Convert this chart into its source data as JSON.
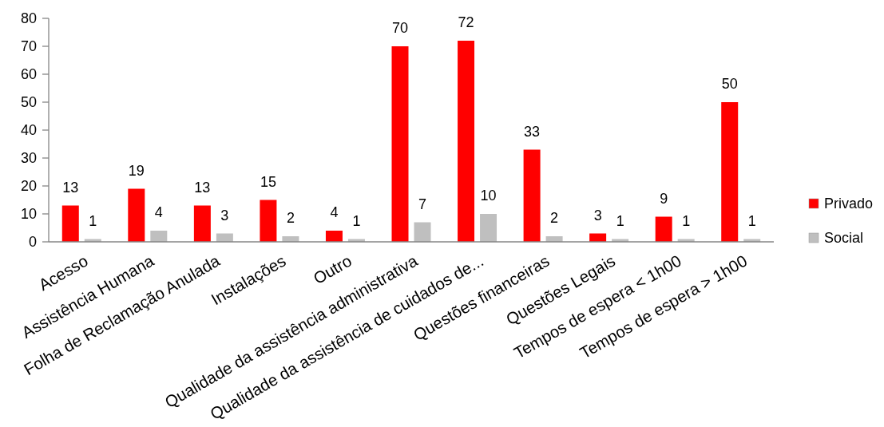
{
  "chart_data": {
    "type": "bar",
    "categories": [
      "Acesso",
      "Assistência Humana",
      "Folha de Reclamação Anulada",
      "Instalações",
      "Outro",
      "Qualidade da assistência administrativa",
      "Qualidade da assistência de cuidados de...",
      "Questões financeiras",
      "Questões Legais",
      "Tempos de espera < 1h00",
      "Tempos de espera > 1h00"
    ],
    "series": [
      {
        "name": "Privado",
        "color": "#ff0000",
        "values": [
          13,
          19,
          13,
          15,
          4,
          70,
          72,
          33,
          3,
          9,
          50
        ]
      },
      {
        "name": "Social",
        "color": "#bfbfbf",
        "values": [
          1,
          4,
          3,
          2,
          1,
          7,
          10,
          2,
          1,
          1,
          1
        ]
      }
    ],
    "ylim": [
      0,
      80
    ],
    "yticks": [
      0,
      10,
      20,
      30,
      40,
      50,
      60,
      70,
      80
    ],
    "legend": "right",
    "data_labels": true
  }
}
